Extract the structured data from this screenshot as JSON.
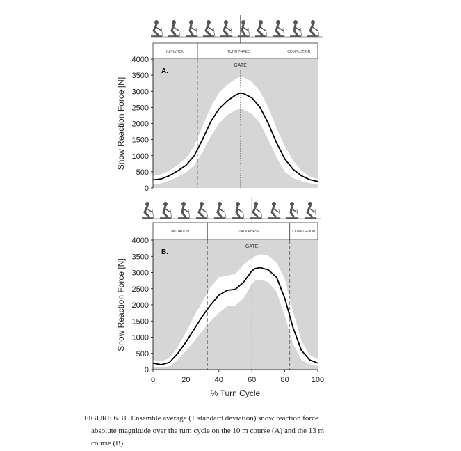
{
  "chart_data": [
    {
      "type": "line",
      "panel_label": "A.",
      "phase_labels": [
        "INITIATION",
        "TURN PHASE",
        "COMPLETION"
      ],
      "phase_bounds": [
        27,
        77
      ],
      "gate_label": "GATE",
      "gate_x": 53,
      "ylabel": "Snow Reaction Force [N]",
      "ylim": [
        0,
        4000
      ],
      "yticks": [
        "0",
        "500",
        "1000",
        "1500",
        "2000",
        "2500",
        "3000",
        "3500",
        "4000"
      ],
      "xlim": [
        0,
        100
      ],
      "x": [
        0,
        5,
        10,
        15,
        20,
        25,
        30,
        35,
        40,
        45,
        50,
        53,
        55,
        60,
        65,
        70,
        75,
        80,
        85,
        90,
        95,
        100
      ],
      "mean": [
        250,
        280,
        380,
        530,
        700,
        1000,
        1500,
        2050,
        2450,
        2700,
        2880,
        2950,
        2930,
        2800,
        2500,
        2000,
        1400,
        900,
        580,
        380,
        260,
        200
      ],
      "upper": [
        400,
        420,
        530,
        720,
        920,
        1300,
        1900,
        2500,
        2950,
        3200,
        3380,
        3450,
        3430,
        3300,
        3000,
        2500,
        1850,
        1300,
        850,
        550,
        350,
        280
      ],
      "lower": [
        100,
        140,
        230,
        340,
        480,
        700,
        1100,
        1600,
        2000,
        2250,
        2420,
        2460,
        2430,
        2300,
        2000,
        1500,
        950,
        500,
        310,
        210,
        150,
        110
      ]
    },
    {
      "type": "line",
      "panel_label": "B.",
      "phase_labels": [
        "INITIATION",
        "TURN PHASE",
        "COMPLETION"
      ],
      "phase_bounds": [
        33,
        83
      ],
      "gate_label": "GATE",
      "gate_x": 60,
      "ylabel": "Snow Reaction Force [N]",
      "ylim": [
        0,
        4000
      ],
      "yticks": [
        "0",
        "500",
        "1000",
        "1500",
        "2000",
        "2500",
        "3000",
        "3500",
        "4000"
      ],
      "xlim": [
        0,
        100
      ],
      "xticks": [
        "0",
        "20",
        "40",
        "60",
        "80",
        "100"
      ],
      "xlabel": "% Turn Cycle",
      "x": [
        0,
        5,
        10,
        15,
        20,
        25,
        30,
        35,
        40,
        45,
        50,
        55,
        60,
        62,
        65,
        70,
        75,
        80,
        85,
        90,
        95,
        100
      ],
      "mean": [
        200,
        150,
        220,
        500,
        850,
        1250,
        1650,
        2000,
        2300,
        2450,
        2480,
        2700,
        3050,
        3120,
        3150,
        3080,
        2850,
        2200,
        1300,
        600,
        300,
        200
      ],
      "upper": [
        300,
        250,
        350,
        700,
        1150,
        1650,
        2100,
        2550,
        2850,
        2900,
        2950,
        3250,
        3450,
        3500,
        3560,
        3520,
        3300,
        2800,
        1800,
        900,
        450,
        330
      ],
      "lower": [
        100,
        60,
        100,
        300,
        580,
        880,
        1200,
        1500,
        1750,
        1950,
        1980,
        2200,
        2650,
        2750,
        2780,
        2700,
        2400,
        1650,
        800,
        300,
        170,
        110
      ]
    }
  ],
  "caption": {
    "line1": "FIGURE 6.31.  Ensemble average (± standard deviation) snow reaction force",
    "line2": "absolute magnitude over the turn cycle on the 10 m course (A) and the 13 m",
    "line3": "course (B)."
  },
  "icons": [
    "skier-sequence-icon"
  ]
}
